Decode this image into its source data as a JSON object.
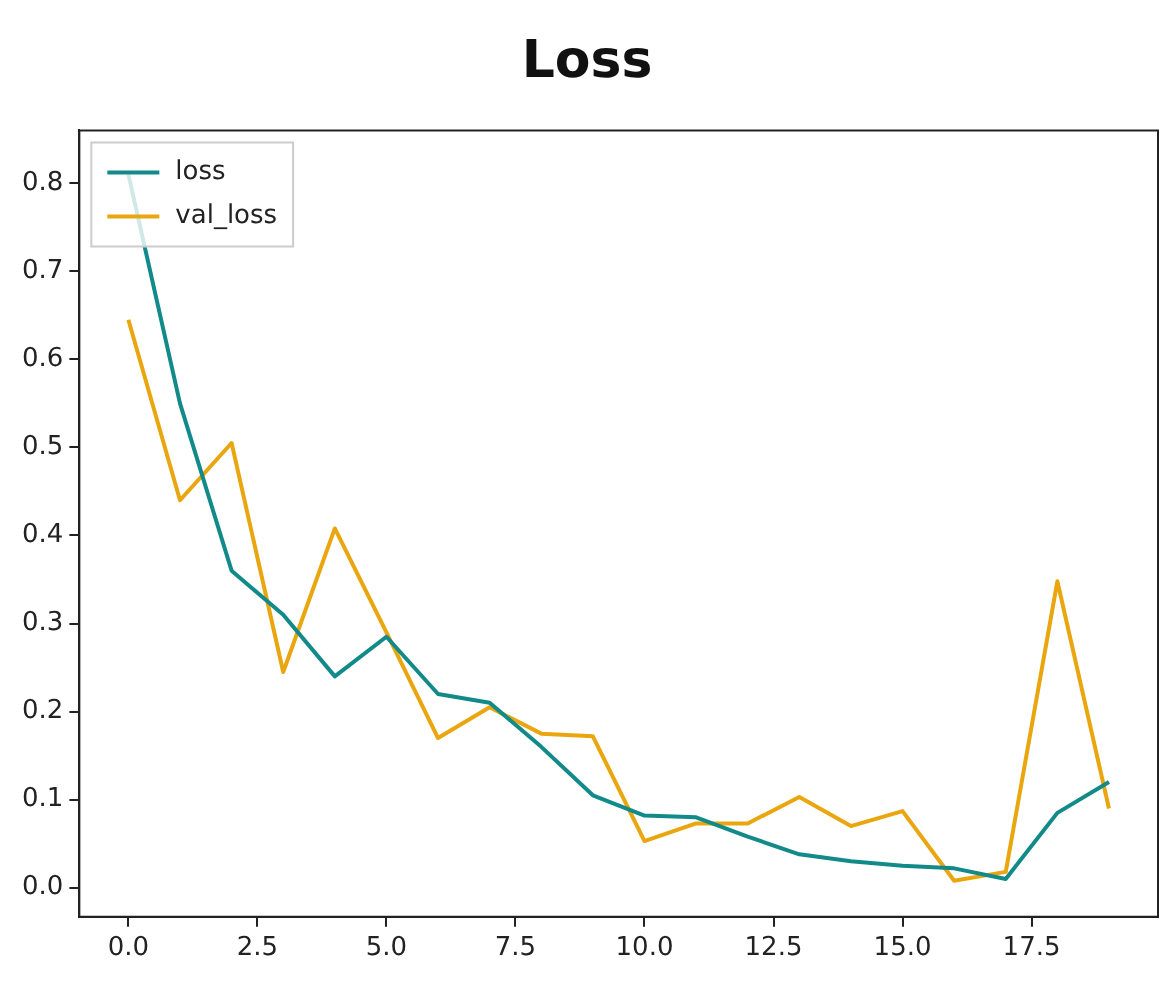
{
  "chart_data": {
    "type": "line",
    "title": "Loss",
    "x": [
      0,
      1,
      2,
      3,
      4,
      5,
      6,
      7,
      8,
      9,
      10,
      11,
      12,
      13,
      14,
      15,
      16,
      17,
      18,
      19
    ],
    "series": [
      {
        "name": "loss",
        "color": "#138a8a",
        "values": [
          0.81,
          0.55,
          0.36,
          0.31,
          0.24,
          0.285,
          0.22,
          0.21,
          0.16,
          0.105,
          0.082,
          0.08,
          0.058,
          0.038,
          0.03,
          0.025,
          0.022,
          0.01,
          0.085,
          0.12
        ]
      },
      {
        "name": "val_loss",
        "color": "#eaa60f",
        "values": [
          0.645,
          0.44,
          0.505,
          0.245,
          0.408,
          0.29,
          0.17,
          0.205,
          0.175,
          0.172,
          0.053,
          0.073,
          0.073,
          0.103,
          0.07,
          0.087,
          0.008,
          0.018,
          0.348,
          0.09
        ]
      }
    ],
    "xlim": [
      -0.95,
      19.95
    ],
    "xticks": [
      {
        "value": 0,
        "label": "0.0"
      },
      {
        "value": 2.5,
        "label": "2.5"
      },
      {
        "value": 5,
        "label": "5.0"
      },
      {
        "value": 7.5,
        "label": "7.5"
      },
      {
        "value": 10,
        "label": "10.0"
      },
      {
        "value": 12.5,
        "label": "12.5"
      },
      {
        "value": 15,
        "label": "15.0"
      },
      {
        "value": 17.5,
        "label": "17.5"
      }
    ],
    "ylim": [
      -0.033,
      0.86
    ],
    "yticks": [
      {
        "value": 0,
        "label": "0.0"
      },
      {
        "value": 0.1,
        "label": "0.1"
      },
      {
        "value": 0.2,
        "label": "0.2"
      },
      {
        "value": 0.3,
        "label": "0.3"
      },
      {
        "value": 0.4,
        "label": "0.4"
      },
      {
        "value": 0.5,
        "label": "0.5"
      },
      {
        "value": 0.6,
        "label": "0.6"
      },
      {
        "value": 0.7,
        "label": "0.7"
      },
      {
        "value": 0.8,
        "label": "0.8"
      }
    ],
    "grid": false,
    "legend": "top left",
    "marker": "none",
    "line_style": "solid"
  }
}
